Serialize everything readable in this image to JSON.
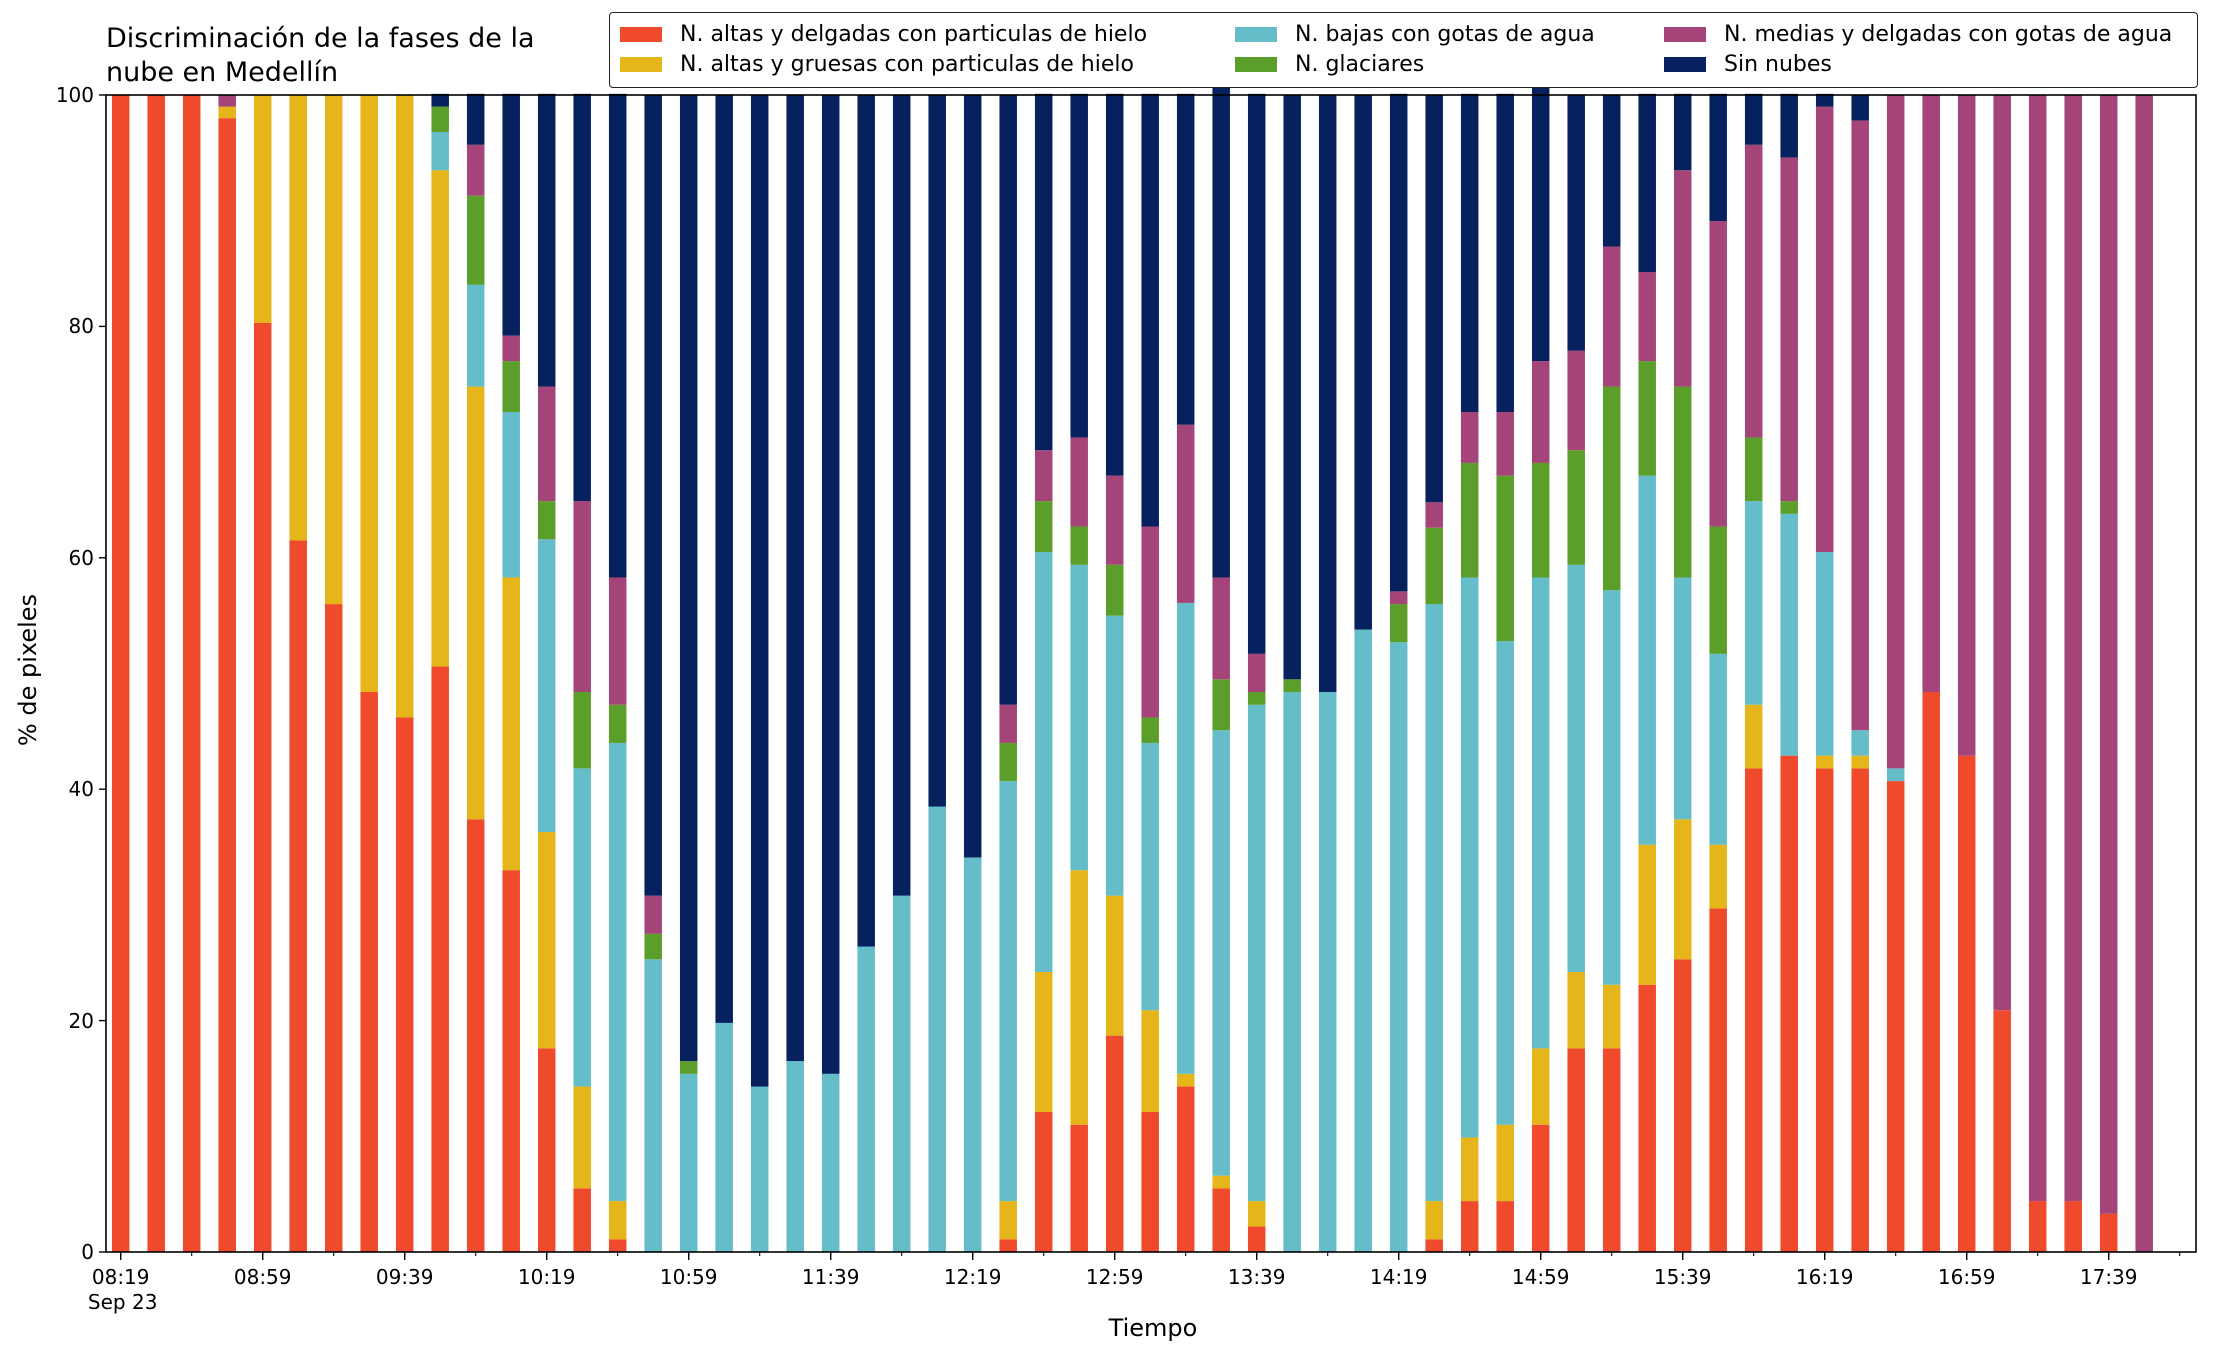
{
  "chart_data": {
    "type": "bar",
    "stacked": true,
    "title": [
      "Discriminación de la fases de la",
      "nube en Medellín"
    ],
    "xlabel": "Tiempo",
    "ylabel": "% de pixeles",
    "ylim": [
      0,
      100
    ],
    "yticks": [
      "0",
      "20",
      "40",
      "60",
      "80",
      "100"
    ],
    "xticks": [
      {
        "index": 0,
        "label": "08:19",
        "sub": "Sep 23"
      },
      {
        "index": 4,
        "label": "08:59"
      },
      {
        "index": 8,
        "label": "09:39"
      },
      {
        "index": 12,
        "label": "10:19"
      },
      {
        "index": 16,
        "label": "10:59"
      },
      {
        "index": 20,
        "label": "11:39"
      },
      {
        "index": 24,
        "label": "12:19"
      },
      {
        "index": 28,
        "label": "12:59"
      },
      {
        "index": 32,
        "label": "13:39"
      },
      {
        "index": 36,
        "label": "14:19"
      },
      {
        "index": 40,
        "label": "14:59"
      },
      {
        "index": 44,
        "label": "15:39"
      },
      {
        "index": 48,
        "label": "16:19"
      },
      {
        "index": 52,
        "label": "16:59"
      },
      {
        "index": 56,
        "label": "17:39"
      }
    ],
    "x_interval_minutes": 10,
    "legend_position": "top-right",
    "series": [
      {
        "name": "N. altas y delgadas con particulas de hielo",
        "color": "#ee4a2b",
        "values": [
          100,
          100,
          100,
          98,
          80.3,
          61.5,
          56,
          48.4,
          46.2,
          50.6,
          37.4,
          33,
          17.6,
          5.5,
          1.1,
          0,
          0,
          0,
          0,
          0,
          0,
          0,
          0,
          0,
          0,
          1.1,
          12.1,
          11,
          18.7,
          12.1,
          14.3,
          5.5,
          2.2,
          0,
          0,
          0,
          0,
          1.1,
          4.4,
          4.4,
          11,
          17.6,
          17.6,
          23.1,
          25.3,
          29.7,
          41.8,
          42.9,
          41.8,
          41.8,
          40.7,
          48.4,
          42.9,
          20.9,
          4.4,
          4.4,
          3.3,
          0
        ]
      },
      {
        "name": "N. altas y gruesas con particulas de hielo",
        "color": "#e6b519",
        "values": [
          0,
          0,
          0,
          1,
          19.7,
          38.5,
          44,
          51.6,
          53.8,
          42.9,
          37.4,
          25.3,
          18.7,
          8.8,
          3.3,
          0,
          0,
          0,
          0,
          0,
          0,
          0,
          0,
          0,
          0,
          3.3,
          12.1,
          22,
          12.1,
          8.8,
          1.1,
          1.1,
          2.2,
          0,
          0,
          0,
          0,
          3.3,
          5.5,
          6.6,
          6.6,
          6.6,
          5.5,
          12.1,
          12.1,
          5.5,
          5.5,
          0,
          1.1,
          1.1,
          0,
          0,
          0,
          0,
          0,
          0,
          0,
          0
        ]
      },
      {
        "name": "N. bajas con gotas de agua",
        "color": "#64bdc9",
        "values": [
          0,
          0,
          0,
          0,
          0,
          0,
          0,
          0,
          0,
          3.3,
          8.8,
          14.3,
          25.3,
          27.5,
          39.6,
          25.3,
          15.4,
          19.8,
          14.3,
          16.5,
          15.4,
          26.4,
          30.8,
          38.5,
          34.1,
          36.3,
          36.3,
          26.4,
          24.2,
          23.1,
          40.7,
          38.5,
          42.9,
          48.4,
          48.4,
          53.8,
          52.7,
          51.6,
          48.4,
          41.8,
          40.7,
          35.2,
          34.1,
          31.9,
          20.9,
          16.5,
          17.6,
          20.9,
          17.6,
          2.2,
          1.1,
          0,
          0,
          0,
          0,
          0,
          0,
          0
        ]
      },
      {
        "name": "N. glaciares",
        "color": "#5b9e2a",
        "values": [
          0,
          0,
          0,
          0,
          0,
          0,
          0,
          0,
          0,
          2.2,
          7.7,
          4.4,
          3.3,
          6.6,
          3.3,
          2.2,
          1.1,
          0,
          0,
          0,
          0,
          0,
          0,
          0,
          0,
          3.3,
          4.4,
          3.3,
          4.4,
          2.2,
          0,
          4.4,
          1.1,
          1.1,
          0,
          0,
          3.3,
          6.6,
          9.9,
          14.3,
          9.9,
          9.9,
          17.6,
          9.9,
          16.5,
          11,
          5.5,
          1.1,
          0,
          0,
          0,
          0,
          0,
          0,
          0,
          0,
          0,
          0
        ]
      },
      {
        "name": "N. medias y delgadas con gotas de agua",
        "color": "#a44478",
        "values": [
          0,
          0,
          0,
          1,
          0,
          0,
          0,
          0,
          0,
          0,
          4.4,
          2.2,
          9.9,
          16.5,
          11,
          3.3,
          0,
          0,
          0,
          0,
          0,
          0,
          0,
          0,
          0,
          3.3,
          4.4,
          7.7,
          7.7,
          16.5,
          15.4,
          8.8,
          3.3,
          0,
          0,
          0,
          1.1,
          2.2,
          4.4,
          5.5,
          8.8,
          8.6,
          12.1,
          7.7,
          18.7,
          26.4,
          25.3,
          29.7,
          38.5,
          52.7,
          58.2,
          51.6,
          57.1,
          79.1,
          95.6,
          95.6,
          96.7,
          100
        ]
      },
      {
        "name": "Sin nubes",
        "color": "#06215e",
        "values": [
          0,
          0,
          0,
          0,
          0,
          0,
          0,
          0,
          0,
          1.1,
          4.4,
          20.9,
          25.3,
          35.2,
          41.8,
          69.2,
          83.5,
          80.2,
          85.7,
          83.5,
          84.6,
          73.6,
          69.2,
          61.5,
          65.9,
          52.7,
          30.8,
          29.7,
          33,
          37.4,
          28.6,
          42.9,
          48.4,
          50.5,
          51.6,
          46.2,
          43,
          35.2,
          27.5,
          27.5,
          24.2,
          22.1,
          13.1,
          15.4,
          6.6,
          11,
          4.4,
          5.5,
          1.1,
          2.2,
          0,
          0,
          0,
          0,
          0,
          0,
          0,
          0
        ]
      }
    ]
  }
}
